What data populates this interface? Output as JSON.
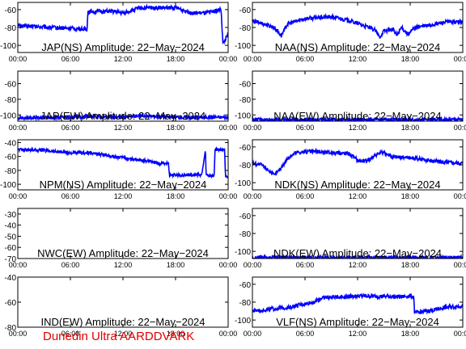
{
  "footer": "Dunedin Ultra AARDDVARK",
  "colors": {
    "trace": "#0000ff",
    "axes": "#000000",
    "footer": "#e00000"
  },
  "x_ticks": [
    "00:00",
    "06:00",
    "12:00",
    "18:00",
    "00:00"
  ],
  "chart_data": [
    {
      "type": "line",
      "title": "JAP(NS) Amplitude: 22−May−2024",
      "xlim": [
        0,
        24
      ],
      "ylim": [
        -108,
        -52
      ],
      "y_ticks": [
        -100,
        -80,
        -60
      ],
      "series": [
        {
          "values": [
            [
              0,
              -78
            ],
            [
              7.9,
              -82
            ],
            [
              8.0,
              -62
            ],
            [
              11,
              -62
            ],
            [
              12,
              -64
            ],
            [
              14,
              -58
            ],
            [
              18,
              -58
            ],
            [
              20,
              -64
            ],
            [
              21.5,
              -64
            ],
            [
              23.2,
              -60
            ],
            [
              23.4,
              -98
            ],
            [
              24,
              -88
            ]
          ]
        }
      ]
    },
    {
      "type": "line",
      "title": "NAA(NS) Amplitude: 22−May−2024",
      "xlim": [
        0,
        24
      ],
      "ylim": [
        -108,
        -52
      ],
      "y_ticks": [
        -100,
        -80,
        -60
      ],
      "series": [
        {
          "values": [
            [
              0,
              -73
            ],
            [
              1,
              -75
            ],
            [
              2.5,
              -80
            ],
            [
              3.3,
              -89
            ],
            [
              4,
              -76
            ],
            [
              6,
              -70
            ],
            [
              9,
              -68
            ],
            [
              11,
              -72
            ],
            [
              13,
              -79
            ],
            [
              14,
              -83
            ],
            [
              14.5,
              -91
            ],
            [
              15,
              -84
            ],
            [
              16,
              -82
            ],
            [
              16.5,
              -89
            ],
            [
              17,
              -80
            ],
            [
              17.8,
              -88
            ],
            [
              18.5,
              -80
            ],
            [
              20,
              -78
            ],
            [
              21,
              -76
            ],
            [
              22,
              -74
            ],
            [
              24,
              -74
            ]
          ]
        }
      ]
    },
    {
      "type": "line",
      "title": "JAP(EW) Amplitude: 22−May−2024",
      "xlim": [
        0,
        24
      ],
      "ylim": [
        -108,
        -44
      ],
      "y_ticks": [
        -100,
        -80,
        -60
      ],
      "series": [
        {
          "values": [
            [
              0,
              -104
            ],
            [
              6,
              -103
            ],
            [
              8,
              -102
            ],
            [
              12,
              -103
            ],
            [
              14,
              -101
            ],
            [
              18,
              -103
            ],
            [
              24,
              -103
            ]
          ]
        }
      ]
    },
    {
      "type": "line",
      "title": "NAA(EW) Amplitude: 22−May−2024",
      "xlim": [
        0,
        24
      ],
      "ylim": [
        -108,
        -44
      ],
      "y_ticks": [
        -100,
        -80,
        -60
      ],
      "series": [
        {
          "values": [
            [
              0,
              -106
            ],
            [
              12,
              -106
            ],
            [
              24,
              -106
            ]
          ]
        }
      ]
    },
    {
      "type": "line",
      "title": "NPM(NS) Amplitude: 22−May−2024",
      "xlim": [
        0,
        24
      ],
      "ylim": [
        -108,
        -36
      ],
      "y_ticks": [
        -100,
        -80,
        -60,
        -40
      ],
      "series": [
        {
          "values": [
            [
              0,
              -50
            ],
            [
              3,
              -51
            ],
            [
              6,
              -55
            ],
            [
              8,
              -55
            ],
            [
              10,
              -58
            ],
            [
              12,
              -62
            ],
            [
              14,
              -65
            ],
            [
              15,
              -67
            ],
            [
              16,
              -70
            ],
            [
              17.2,
              -70
            ],
            [
              17.3,
              -87
            ],
            [
              21,
              -86
            ],
            [
              21.4,
              -52
            ],
            [
              21.5,
              -87
            ],
            [
              22.4,
              -88
            ],
            [
              22.5,
              -50
            ],
            [
              23.6,
              -50
            ],
            [
              23.7,
              -88
            ],
            [
              24,
              -88
            ]
          ]
        }
      ]
    },
    {
      "type": "line",
      "title": "NDK(NS) Amplitude: 22−May−2024",
      "xlim": [
        0,
        24
      ],
      "ylim": [
        -108,
        -52
      ],
      "y_ticks": [
        -100,
        -80,
        -60
      ],
      "series": [
        {
          "values": [
            [
              0,
              -78
            ],
            [
              1,
              -80
            ],
            [
              2,
              -87
            ],
            [
              2.5,
              -92
            ],
            [
              3.2,
              -84
            ],
            [
              4,
              -73
            ],
            [
              5,
              -66
            ],
            [
              7,
              -65
            ],
            [
              10,
              -67
            ],
            [
              11,
              -67
            ],
            [
              12,
              -75
            ],
            [
              13,
              -76
            ],
            [
              14,
              -69
            ],
            [
              15,
              -66
            ],
            [
              16,
              -71
            ],
            [
              18,
              -72
            ],
            [
              20,
              -75
            ],
            [
              22,
              -77
            ],
            [
              24,
              -78
            ]
          ]
        }
      ]
    },
    {
      "type": "line",
      "title": "NWC(EW) Amplitude: 22−May−2024",
      "xlim": [
        0,
        24
      ],
      "ylim": [
        -70,
        -25
      ],
      "y_ticks": [
        -70,
        -60,
        -50,
        -40,
        -30
      ],
      "series": []
    },
    {
      "type": "line",
      "title": "NDK(EW) Amplitude: 22−May−2024",
      "xlim": [
        0,
        24
      ],
      "ylim": [
        -108,
        -52
      ],
      "y_ticks": [
        -100,
        -80,
        -60
      ],
      "series": [
        {
          "values": [
            [
              0,
              -107
            ],
            [
              12,
              -107
            ],
            [
              24,
              -107
            ]
          ]
        }
      ]
    },
    {
      "type": "line",
      "title": "IND(EW) Amplitude: 22−May−2024",
      "xlim": [
        0,
        24
      ],
      "ylim": [
        -80,
        -40
      ],
      "y_ticks": [
        -80,
        -60,
        -40
      ],
      "series": []
    },
    {
      "type": "line",
      "title": "VLF(NS) Amplitude: 22−May−2024",
      "xlim": [
        0,
        24
      ],
      "ylim": [
        -108,
        -52
      ],
      "y_ticks": [
        -100,
        -80,
        -60
      ],
      "series": [
        {
          "values": [
            [
              0,
              -90
            ],
            [
              4,
              -86
            ],
            [
              7,
              -80
            ],
            [
              8,
              -75
            ],
            [
              12,
              -73
            ],
            [
              17,
              -74
            ],
            [
              18,
              -73
            ],
            [
              18.4,
              -74
            ],
            [
              18.5,
              -92
            ],
            [
              20,
              -90
            ],
            [
              22,
              -86
            ],
            [
              24,
              -84
            ]
          ]
        }
      ]
    }
  ]
}
